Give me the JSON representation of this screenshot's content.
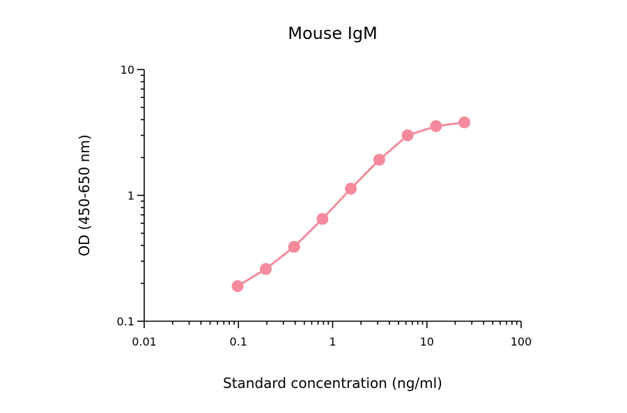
{
  "chart_data": {
    "type": "line",
    "title": "Mouse IgM",
    "xlabel": "Standard concentration (ng/ml)",
    "ylabel": "OD (450-650 nm)",
    "xscale": "log",
    "yscale": "log",
    "xlim": [
      0.01,
      100
    ],
    "ylim": [
      0.1,
      10
    ],
    "x_ticks": [
      {
        "value": 0.01,
        "label": "0.01"
      },
      {
        "value": 0.1,
        "label": "0.1"
      },
      {
        "value": 1,
        "label": "1"
      },
      {
        "value": 10,
        "label": "10"
      },
      {
        "value": 100,
        "label": "100"
      }
    ],
    "y_ticks": [
      {
        "value": 0.1,
        "label": "0.1"
      },
      {
        "value": 1,
        "label": "1"
      },
      {
        "value": 10,
        "label": "10"
      }
    ],
    "grid": false,
    "series": [
      {
        "color": "#f48a9c",
        "marker": "circle",
        "x": [
          0.098,
          0.195,
          0.39,
          0.78,
          1.56,
          3.125,
          6.25,
          12.5,
          25
        ],
        "y": [
          0.19,
          0.26,
          0.39,
          0.65,
          1.13,
          1.92,
          3.0,
          3.55,
          3.8
        ]
      }
    ]
  }
}
